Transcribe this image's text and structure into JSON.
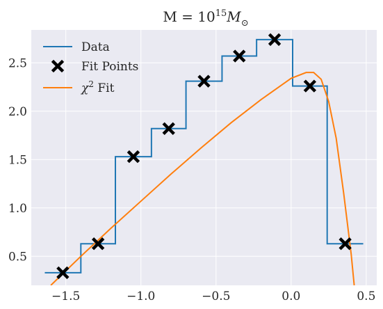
{
  "chart_data": {
    "type": "line",
    "title": {
      "prefix": "M = 10",
      "exponent": "15",
      "mass_symbol": "M",
      "sun_subscript": "⊙"
    },
    "xlabel": "",
    "ylabel": "",
    "xlim": [
      -1.73,
      0.57
    ],
    "ylim": [
      0.2,
      2.84
    ],
    "x_ticks": [
      -1.5,
      -1.0,
      -0.5,
      0.0,
      0.5
    ],
    "x_tick_labels": [
      "−1.5",
      "−1.0",
      "−0.5",
      "0.0",
      "0.5"
    ],
    "y_ticks": [
      0.5,
      1.0,
      1.5,
      2.0,
      2.5
    ],
    "y_tick_labels": [
      "0.5",
      "1.0",
      "1.5",
      "2.0",
      "2.5"
    ],
    "grid": true,
    "legend_position": "top-left",
    "legend": [
      {
        "key": "data",
        "label": "Data"
      },
      {
        "key": "fit_points",
        "label": "Fit Points"
      },
      {
        "key": "chi2_fit",
        "label_symbol": "χ",
        "label_exponent": "2",
        "label_suffix": " Fit"
      }
    ],
    "series": [
      {
        "name": "Data",
        "kind": "step",
        "color": "#1f77b4",
        "bin_edges": [
          -1.64,
          -1.4,
          -1.17,
          -0.93,
          -0.7,
          -0.46,
          -0.23,
          0.01,
          0.24,
          0.48
        ],
        "values": [
          0.33,
          0.63,
          1.53,
          1.82,
          2.31,
          2.57,
          2.74,
          2.26,
          0.63
        ]
      },
      {
        "name": "Fit Points",
        "kind": "scatter",
        "marker": "x",
        "color": "#000000",
        "x": [
          -1.52,
          -1.285,
          -1.05,
          -0.815,
          -0.58,
          -0.345,
          -0.11,
          0.125,
          0.36
        ],
        "y": [
          0.33,
          0.63,
          1.53,
          1.82,
          2.31,
          2.57,
          2.74,
          2.26,
          0.63
        ]
      },
      {
        "name": "χ² Fit",
        "kind": "line",
        "color": "#ff7f0e",
        "x": [
          -1.6,
          -1.4,
          -1.2,
          -1.0,
          -0.8,
          -0.6,
          -0.4,
          -0.2,
          0.0,
          0.1,
          0.15,
          0.2,
          0.25,
          0.3,
          0.35,
          0.4,
          0.42
        ],
        "y": [
          0.2,
          0.5,
          0.79,
          1.07,
          1.35,
          1.62,
          1.88,
          2.12,
          2.34,
          2.4,
          2.4,
          2.33,
          2.1,
          1.72,
          1.15,
          0.52,
          0.2
        ]
      }
    ]
  }
}
